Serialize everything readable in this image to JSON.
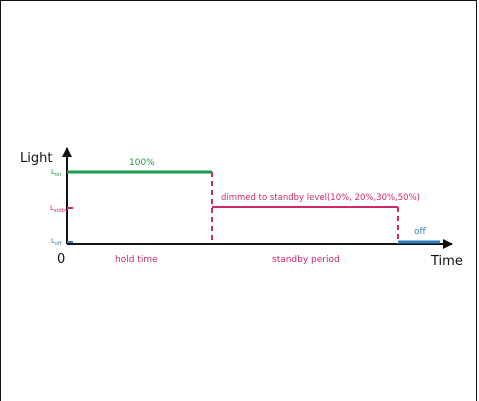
{
  "diagram": {
    "y_axis_label": "Light",
    "x_axis_label": "Time",
    "origin_label": "0",
    "levels": {
      "on": {
        "base": "L",
        "sub": "on"
      },
      "stdby": {
        "base": "L",
        "sub": "stdby"
      },
      "off": {
        "base": "L",
        "sub": "off"
      }
    },
    "annotations": {
      "on_level": "100%",
      "standby_level": "dimmed to standby level(10%, 20%,30%,50%)",
      "off_level": "off"
    },
    "phases": {
      "hold": "hold time",
      "standby": "standby period"
    },
    "colors": {
      "on": "#1a9a4a",
      "standby": "#d0266b",
      "off": "#2f7fc1",
      "axis": "#111111"
    }
  }
}
